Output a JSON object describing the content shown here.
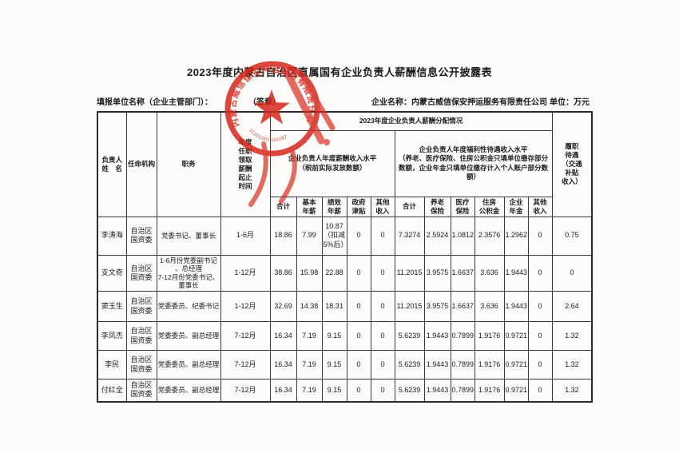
{
  "title": "2023年度内蒙古自治区直属国有企业负责人薪酬信息公开披露表",
  "meta": {
    "report_unit_label": "填报单位名称（企业主管部门）：",
    "sign_label": "（签章）",
    "company_name": "企业名称：内蒙古威信保安押运服务有限责任公司",
    "unit_note": "单位：万元"
  },
  "seal": {
    "company": "内蒙古威信保安押运服务有限责任公司",
    "serial": "15301001004287",
    "color": "#d6281c"
  },
  "table": {
    "headers": {
      "name": "负责人\n姓　名",
      "agency": "任命机构",
      "position": "职务",
      "period": "年度\n任职\n领取\n薪酬\n起止\n时间",
      "group_2023": "2023年度企业负责人薪酬分配情况",
      "salary_group": "企业负责人年度薪酬收入水平\n（税前实际发放数额）",
      "welfare_group": "企业负责人年度福利性待遇收入水平\n（养老、医疗保险、住房公积金只填单位缴存部分数额，企业年金只填单位缴存计入个人账户部分数额）",
      "duty": "履职\n待遇\n（交通\n补贴\n收入）",
      "sub": [
        "合计",
        "基本\n年薪",
        "绩效\n年薪",
        "政府\n津贴",
        "其他\n收入",
        "合计",
        "养老\n保险",
        "医疗\n保险",
        "住房\n公积金",
        "企业\n年金",
        "其他\n收入"
      ]
    },
    "rows": [
      [
        "李涛海",
        "自治区\n国资委",
        "党委书记、董事长",
        "1-6月",
        "18.86",
        "7.99",
        "10.87\n（扣减\n5%后）",
        "0",
        "0",
        "7.3274",
        "2.5924",
        "1.0812",
        "2.3576",
        "1.2962",
        "0",
        "0.75"
      ],
      [
        "支文奇",
        "自治区\n国资委",
        "1-6月份党委副书记\n、总经理\n7-12月份党委书记、\n董事长",
        "1-12月",
        "38.86",
        "15.98",
        "22.88",
        "0",
        "0",
        "11.2015",
        "3.9575",
        "1.6637",
        "3.636",
        "1.9443",
        "0",
        "0"
      ],
      [
        "窦玉生",
        "自治区\n国资委",
        "党委委员、纪委书记",
        "1-12月",
        "32.69",
        "14.38",
        "18.31",
        "0",
        "0",
        "11.2015",
        "3.9575",
        "1.6637",
        "3.636",
        "1.9443",
        "0",
        "2.64"
      ],
      [
        "李凤杰",
        "自治区\n国资委",
        "党委委员、副总经理",
        "7-12月",
        "16.34",
        "7.19",
        "9.15",
        "0",
        "0",
        "5.6239",
        "1.9443",
        "0.7899",
        "1.9176",
        "0.9721",
        "0",
        "1.32"
      ],
      [
        "李民",
        "自治区\n国资委",
        "党委委员、副总经理",
        "7-12月",
        "16.34",
        "7.19",
        "9.15",
        "0",
        "0",
        "5.6239",
        "1.9443",
        "0.7899",
        "1.9176",
        "0.9721",
        "0",
        "1.32"
      ],
      [
        "付红全",
        "自治区\n国资委",
        "党委委员、副总经理",
        "7-12月",
        "16.34",
        "7.19",
        "9.15",
        "0",
        "0",
        "5.6239",
        "1.9443",
        "0.7899",
        "1.9176",
        "0.9721",
        "0",
        "1.32"
      ]
    ]
  }
}
